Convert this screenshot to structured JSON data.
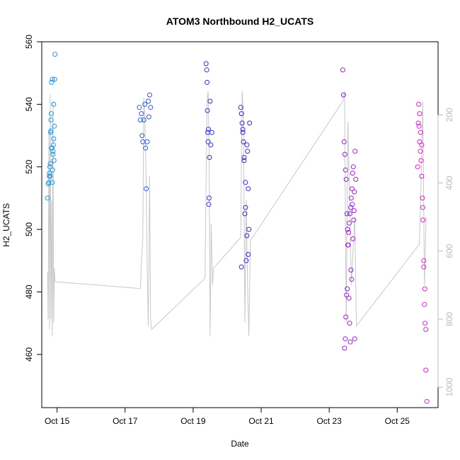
{
  "chart_data": {
    "type": "scatter",
    "title": "ATOM3 Northbound H2_UCATS",
    "xlabel": "Date",
    "ylabel": "H2_UCATS",
    "xlim": [
      14.55,
      26.2
    ],
    "ylim": [
      443,
      560
    ],
    "x_ticks": [
      15,
      17,
      19,
      21,
      23,
      25
    ],
    "x_tick_labels": [
      "Oct 15",
      "Oct 17",
      "Oct 19",
      "Oct 21",
      "Oct 23",
      "Oct 25"
    ],
    "y_ticks": [
      460,
      480,
      500,
      520,
      540,
      560
    ],
    "y_tick_labels": [
      "460",
      "480",
      "500",
      "520",
      "540",
      "560"
    ],
    "y2_inverted": true,
    "y2lim": [
      1060,
      -15
    ],
    "y2_ticks": [
      200,
      400,
      600,
      800,
      1000
    ],
    "y2_tick_labels": [
      "200",
      "400",
      "600",
      "800",
      "1000"
    ],
    "grid": false,
    "legend": "none",
    "colors": {
      "alt_line": "#c8c8c8",
      "right_axis": "#bbbbbb",
      "point_start": "#1e9be8",
      "point_mid": "#3a1ee0",
      "point_end": "#e61ed2"
    },
    "secondary_series": {
      "name": "",
      "x": [
        14.72,
        14.74,
        14.76,
        14.78,
        14.8,
        14.82,
        14.84,
        14.86,
        14.88,
        14.9,
        14.92,
        14.94,
        17.45,
        17.48,
        17.52,
        17.55,
        17.58,
        17.62,
        17.65,
        17.68,
        17.72,
        17.75,
        17.78,
        19.35,
        19.38,
        19.41,
        19.44,
        19.47,
        19.5,
        19.53,
        19.57,
        19.6,
        20.4,
        20.44,
        20.48,
        20.52,
        20.56,
        20.6,
        20.64,
        20.68,
        23.4,
        23.45,
        23.5,
        23.55,
        23.6,
        23.65,
        23.7,
        23.75,
        23.8,
        25.65,
        25.7,
        25.75,
        25.8,
        25.85
      ],
      "values": [
        660,
        800,
        250,
        830,
        140,
        800,
        450,
        850,
        160,
        810,
        650,
        690,
        710,
        640,
        560,
        150,
        200,
        400,
        660,
        820,
        380,
        800,
        830,
        680,
        400,
        160,
        130,
        320,
        850,
        520,
        700,
        650,
        560,
        130,
        200,
        810,
        450,
        700,
        850,
        570,
        160,
        130,
        810,
        220,
        450,
        700,
        600,
        500,
        820,
        580,
        400,
        160,
        700,
        500
      ]
    },
    "series": [
      {
        "name": "",
        "x": [
          14.72,
          14.74,
          14.76,
          14.77,
          14.78,
          14.79,
          14.8,
          14.81,
          14.82,
          14.83,
          14.84,
          14.85,
          14.86,
          14.87,
          14.88,
          14.89,
          14.9,
          14.91
        ],
        "values": [
          510,
          514.6,
          515,
          517,
          518,
          520,
          521,
          531,
          535,
          537,
          526,
          526,
          515,
          519,
          525,
          527,
          540,
          522
        ]
      },
      {
        "name": "",
        "x": [
          14.8,
          14.82,
          14.84,
          14.86,
          14.88,
          14.9,
          14.92,
          14.93,
          14.94
        ],
        "values": [
          517,
          531.5,
          547,
          548,
          524,
          529,
          533,
          548,
          556
        ]
      },
      {
        "name": "",
        "x": [
          17.42,
          17.45,
          17.48,
          17.5,
          17.52,
          17.55,
          17.58,
          17.6,
          17.62,
          17.65,
          17.68,
          17.7,
          17.72,
          17.75
        ],
        "values": [
          539,
          535,
          537,
          530,
          528,
          535,
          540,
          526,
          513,
          528,
          541,
          536,
          543,
          539
        ]
      },
      {
        "name": "",
        "x": [
          19.38,
          19.4,
          19.41,
          19.42,
          19.43,
          19.44,
          19.45,
          19.46,
          19.47,
          19.48,
          19.5,
          19.52,
          19.55
        ],
        "values": [
          553,
          551,
          547,
          538,
          531,
          528,
          532,
          508,
          510,
          523,
          541,
          527,
          531
        ]
      },
      {
        "name": "",
        "x": [
          20.4,
          20.42,
          20.44,
          20.46,
          20.48,
          20.5,
          20.52,
          20.54,
          20.56,
          20.58,
          20.6,
          20.62,
          20.64
        ],
        "values": [
          539,
          537,
          534,
          531,
          528,
          522,
          505,
          507,
          490,
          498,
          525,
          492,
          500
        ]
      },
      {
        "name": "",
        "x": [
          20.42,
          20.46,
          20.5,
          20.54,
          20.58,
          20.62,
          20.66
        ],
        "values": [
          488,
          532,
          523,
          515,
          527,
          513,
          534
        ]
      },
      {
        "name": "",
        "x": [
          23.4,
          23.42,
          23.44,
          23.46,
          23.48,
          23.5,
          23.52,
          23.54,
          23.56,
          23.58,
          23.6,
          23.62,
          23.64,
          23.66,
          23.68,
          23.7,
          23.72,
          23.74,
          23.76,
          23.78
        ],
        "values": [
          551,
          543,
          528,
          524,
          519,
          516,
          505,
          500,
          495,
          478,
          470,
          464,
          487,
          484,
          508,
          497,
          503,
          512,
          525,
          516
        ]
      },
      {
        "name": "",
        "x": [
          23.45,
          23.47,
          23.49,
          23.51,
          23.53,
          23.55,
          23.57,
          23.59,
          23.61,
          23.63,
          23.65,
          23.67,
          23.69,
          23.71,
          23.73,
          23.75
        ],
        "values": [
          462,
          465,
          472,
          479,
          481,
          495,
          499,
          502,
          505,
          507,
          510,
          513,
          518,
          520,
          506,
          465
        ]
      },
      {
        "name": "",
        "x": [
          25.6,
          25.62,
          25.64,
          25.66,
          25.68,
          25.7,
          25.72,
          25.74,
          25.76,
          25.78,
          25.8,
          25.82,
          25.84
        ],
        "values": [
          520,
          534,
          533,
          528,
          525,
          522,
          517,
          510,
          503,
          490,
          476,
          470,
          468
        ]
      },
      {
        "name": "",
        "x": [
          25.63,
          25.66,
          25.69,
          25.72,
          25.75,
          25.78,
          25.81,
          25.84,
          25.87
        ],
        "values": [
          540,
          537,
          531,
          527,
          507,
          488,
          481,
          455,
          445
        ]
      }
    ]
  }
}
